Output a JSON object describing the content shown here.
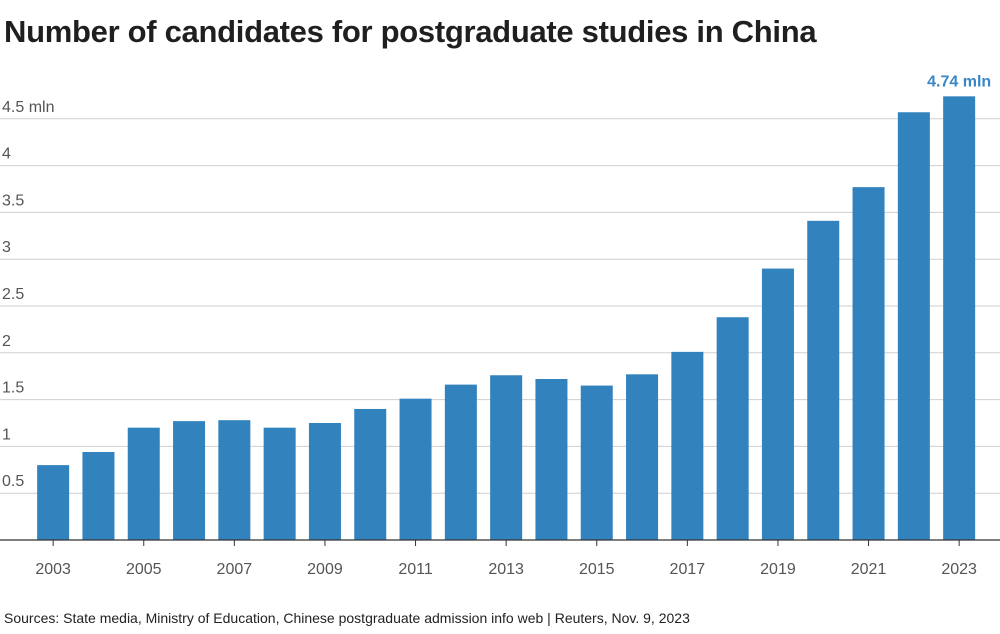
{
  "chart_data": {
    "type": "bar",
    "title": "Number of candidates for postgraduate studies in China",
    "source": "Sources: State media, Ministry of Education, Chinese postgraduate admission info web | Reuters, Nov. 9, 2023",
    "categories": [
      "2003",
      "2004",
      "2005",
      "2006",
      "2007",
      "2008",
      "2009",
      "2010",
      "2011",
      "2012",
      "2013",
      "2014",
      "2015",
      "2016",
      "2017",
      "2018",
      "2019",
      "2020",
      "2021",
      "2022",
      "2023"
    ],
    "values": [
      0.8,
      0.94,
      1.2,
      1.27,
      1.28,
      1.2,
      1.25,
      1.4,
      1.51,
      1.66,
      1.76,
      1.72,
      1.65,
      1.77,
      2.01,
      2.38,
      2.9,
      3.41,
      3.77,
      4.57,
      4.74
    ],
    "x_tick_labels": [
      "2003",
      "2005",
      "2007",
      "2009",
      "2011",
      "2013",
      "2015",
      "2017",
      "2019",
      "2021",
      "2023"
    ],
    "y_ticks": [
      {
        "value": 0.5,
        "label": "0.5"
      },
      {
        "value": 1,
        "label": "1"
      },
      {
        "value": 1.5,
        "label": "1.5"
      },
      {
        "value": 2,
        "label": "2"
      },
      {
        "value": 2.5,
        "label": "2.5"
      },
      {
        "value": 3,
        "label": "3"
      },
      {
        "value": 3.5,
        "label": "3.5"
      },
      {
        "value": 4,
        "label": "4"
      },
      {
        "value": 4.5,
        "label": "4.5 mln"
      }
    ],
    "ylim": [
      0,
      4.5
    ],
    "annotation": {
      "category": "2023",
      "text": "4.74 mln"
    },
    "bar_color": "#3182bd",
    "annotation_color": "#3a86c6",
    "grid": true
  }
}
